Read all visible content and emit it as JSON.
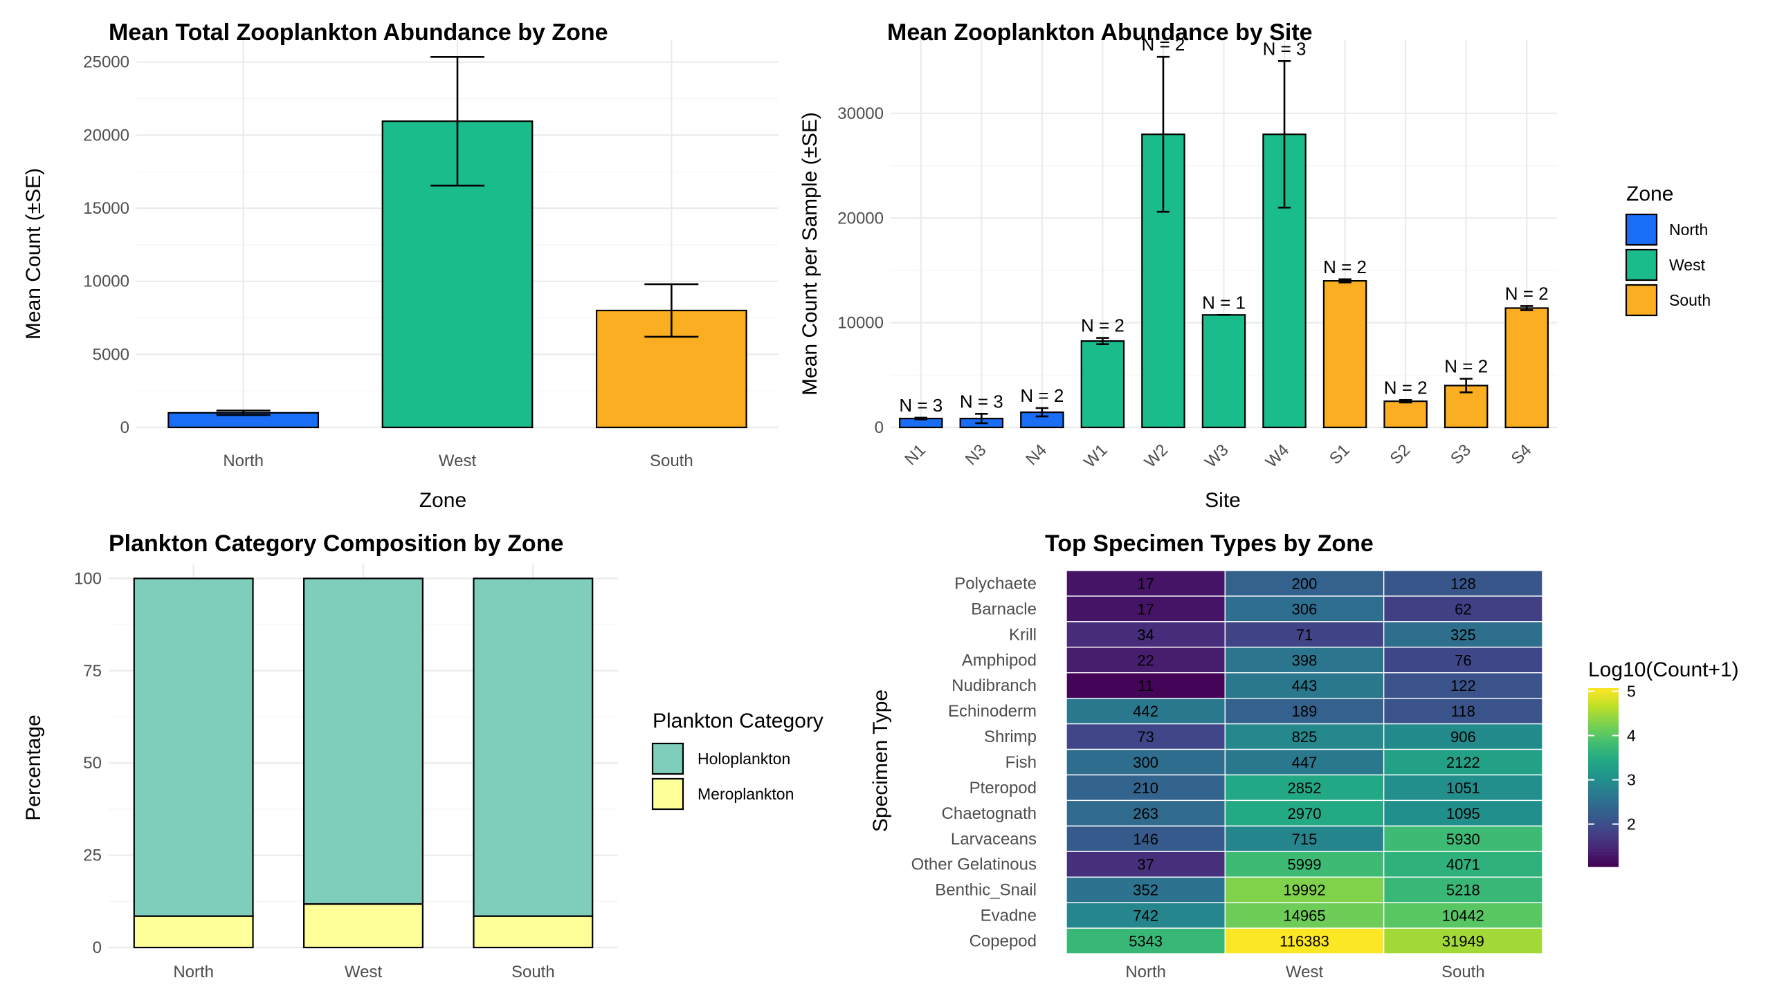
{
  "chart_data": [
    {
      "id": "zone",
      "type": "bar",
      "title": "Mean Total Zooplankton Abundance by Zone",
      "xlabel": "Zone",
      "ylabel": "Mean Count (±SE)",
      "ylim": [
        0,
        26500
      ],
      "yticks": [
        0,
        5000,
        10000,
        15000,
        20000,
        25000
      ],
      "categories": [
        "North",
        "West",
        "South"
      ],
      "values": [
        1000,
        20950,
        8000
      ],
      "se": [
        150,
        4400,
        1800
      ],
      "colors": [
        "#1a6ef5",
        "#1abc8c",
        "#fbae22"
      ],
      "grid": true
    },
    {
      "id": "site",
      "type": "bar",
      "title": "Mean Zooplankton Abundance by Site",
      "xlabel": "Site",
      "ylabel": "Mean Count per Sample (±SE)",
      "ylim": [
        0,
        37000
      ],
      "yticks": [
        0,
        10000,
        20000,
        30000
      ],
      "categories": [
        "N1",
        "N3",
        "N4",
        "W1",
        "W2",
        "W3",
        "W4",
        "S1",
        "S2",
        "S3",
        "S4"
      ],
      "values": [
        850,
        850,
        1450,
        8250,
        28000,
        10750,
        28000,
        14000,
        2500,
        4000,
        11400
      ],
      "se": [
        80,
        450,
        400,
        300,
        7400,
        0,
        7000,
        150,
        120,
        650,
        200
      ],
      "zones": [
        "North",
        "North",
        "North",
        "West",
        "West",
        "West",
        "West",
        "South",
        "South",
        "South",
        "South"
      ],
      "labels": [
        "N = 3",
        "N = 3",
        "N = 2",
        "N = 2",
        "N = 2",
        "N = 1",
        "N = 3",
        "N = 2",
        "N = 2",
        "N = 2",
        "N = 2"
      ],
      "legend": {
        "title": "Zone",
        "items": [
          "North",
          "West",
          "South"
        ],
        "position": "right"
      },
      "colors": {
        "North": "#1a6ef5",
        "West": "#1abc8c",
        "South": "#fbae22"
      },
      "grid": true
    },
    {
      "id": "comp",
      "type": "bar",
      "stacked": true,
      "title": "Plankton Category Composition by Zone",
      "xlabel": "",
      "ylabel": "Percentage",
      "ylim": [
        0,
        104
      ],
      "yticks": [
        0,
        25,
        50,
        75,
        100
      ],
      "categories": [
        "North",
        "West",
        "South"
      ],
      "series": [
        {
          "name": "Meroplankton",
          "values": [
            8.5,
            11.8,
            8.5
          ],
          "color": "#ffff99"
        },
        {
          "name": "Holoplankton",
          "values": [
            91.5,
            88.2,
            91.5
          ],
          "color": "#7fcdbb"
        }
      ],
      "legend": {
        "title": "Plankton Category",
        "items": [
          "Holoplankton",
          "Meroplankton"
        ],
        "position": "right"
      },
      "grid": true
    },
    {
      "id": "heat",
      "type": "heatmap",
      "title": "Top Specimen Types by Zone",
      "xlabel": "",
      "ylabel": "Specimen Type",
      "columns": [
        "North",
        "West",
        "South"
      ],
      "rows": [
        "Polychaete",
        "Barnacle",
        "Krill",
        "Amphipod",
        "Nudibranch",
        "Echinoderm",
        "Shrimp",
        "Fish",
        "Pteropod",
        "Chaetognath",
        "Larvaceans",
        "Other Gelatinous",
        "Benthic_Snail",
        "Evadne",
        "Copepod"
      ],
      "values": [
        [
          17,
          200,
          128
        ],
        [
          17,
          306,
          62
        ],
        [
          34,
          71,
          325
        ],
        [
          22,
          398,
          76
        ],
        [
          11,
          443,
          122
        ],
        [
          442,
          189,
          118
        ],
        [
          73,
          825,
          906
        ],
        [
          300,
          447,
          2122
        ],
        [
          210,
          2852,
          1051
        ],
        [
          263,
          2970,
          1095
        ],
        [
          146,
          715,
          5930
        ],
        [
          37,
          5999,
          4071
        ],
        [
          352,
          19992,
          5218
        ],
        [
          742,
          14965,
          10442
        ],
        [
          5343,
          116383,
          31949
        ]
      ],
      "legend": {
        "title": "Log10(Count+1)",
        "ticks": [
          2,
          3,
          4,
          5
        ],
        "range": [
          1.04,
          5.07
        ],
        "position": "right"
      },
      "colorscale": "viridis"
    }
  ]
}
